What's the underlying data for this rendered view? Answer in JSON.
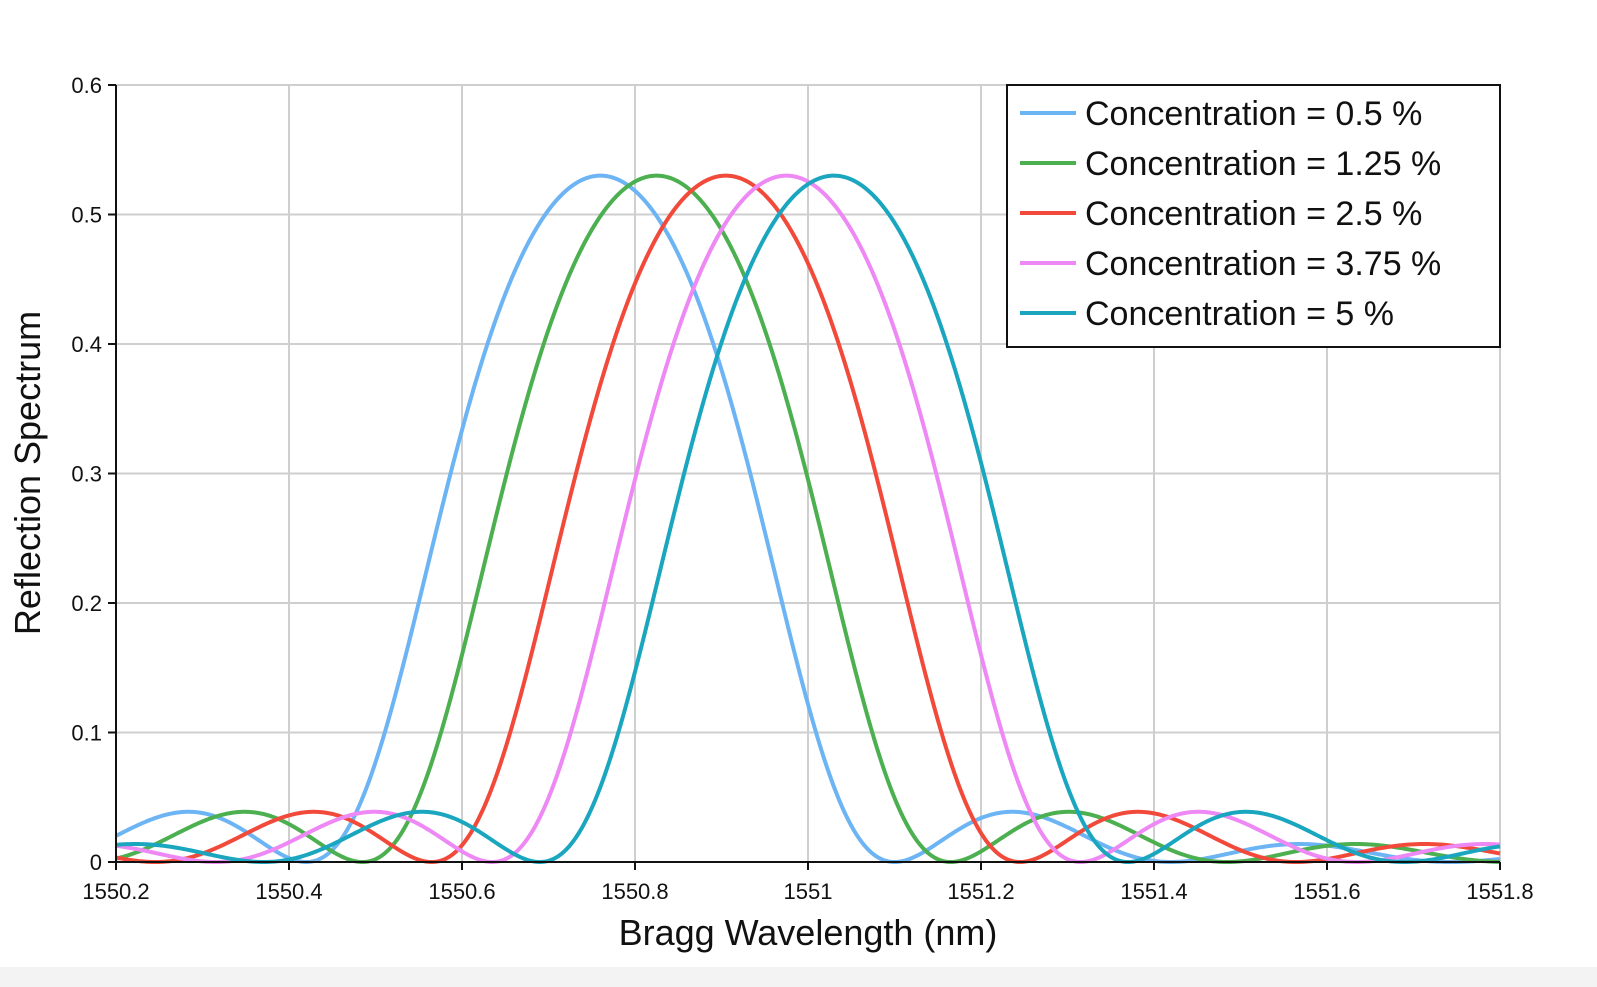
{
  "chart_data": {
    "type": "line",
    "title": "",
    "xlabel": "Bragg Wavelength (nm)",
    "ylabel": "Reflection Spectrum",
    "xlim": [
      1550.2,
      1551.8
    ],
    "ylim": [
      0,
      0.6
    ],
    "xticks": [
      1550.2,
      1550.4,
      1550.6,
      1550.8,
      1551,
      1551.2,
      1551.4,
      1551.6,
      1551.8
    ],
    "xtick_labels": [
      "1550.2",
      "1550.4",
      "1550.6",
      "1550.8",
      "1551",
      "1551.2",
      "1551.4",
      "1551.6",
      "1551.8"
    ],
    "yticks": [
      0,
      0.1,
      0.2,
      0.3,
      0.4,
      0.5,
      0.6
    ],
    "ytick_labels": [
      "0",
      "0.1",
      "0.2",
      "0.3",
      "0.4",
      "0.5",
      "0.6"
    ],
    "grid": true,
    "legend_position": "top-right",
    "peak_reflectivity": 0.53,
    "main_lobe_half_width_nm": 0.34,
    "series": [
      {
        "name": "Concentration = 0.5 %",
        "center": 1550.76,
        "color": "#6cb4f4"
      },
      {
        "name": "Concentration = 1.25 %",
        "center": 1550.825,
        "color": "#4caf50"
      },
      {
        "name": "Concentration = 2.5 %",
        "center": 1550.905,
        "color": "#f24a3a"
      },
      {
        "name": "Concentration = 3.75 %",
        "center": 1550.975,
        "color": "#ee88f4"
      },
      {
        "name": "Concentration = 5 %",
        "center": 1551.03,
        "color": "#1aa6bf"
      }
    ]
  }
}
